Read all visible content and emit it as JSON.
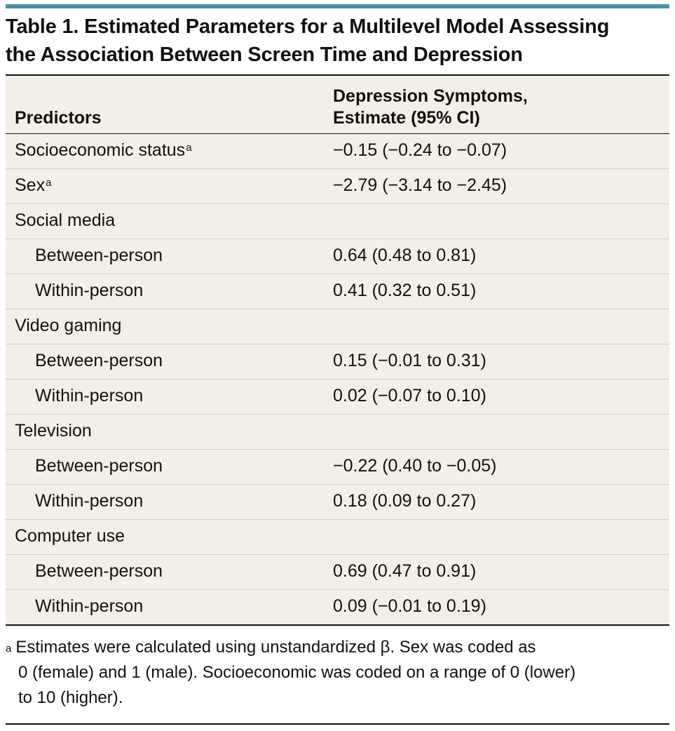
{
  "title_line1": "Table 1. Estimated Parameters for a Multilevel Model Assessing",
  "title_line2": "the Association Between Screen Time and Depression",
  "header": {
    "col1": "Predictors",
    "col2_line1": "Depression Symptoms,",
    "col2_line2": "Estimate (95% CI)"
  },
  "rows": [
    {
      "label": "Socioeconomic status",
      "sup": "a",
      "value": "−0.15 (−0.24 to −0.07)"
    },
    {
      "label": "Sex",
      "sup": "a",
      "value": "−2.79 (−3.14 to −2.45)"
    },
    {
      "label": "Social media",
      "value": ""
    },
    {
      "label": "Between-person",
      "value": "0.64 (0.48 to 0.81)"
    },
    {
      "label": "Within-person",
      "value": "0.41 (0.32 to 0.51)"
    },
    {
      "label": "Video gaming",
      "value": ""
    },
    {
      "label": "Between-person",
      "value": "0.15 (−0.01 to 0.31)"
    },
    {
      "label": "Within-person",
      "value": "0.02 (−0.07 to 0.10)"
    },
    {
      "label": "Television",
      "value": ""
    },
    {
      "label": "Between-person",
      "value": "−0.22 (0.40 to −0.05)"
    },
    {
      "label": "Within-person",
      "value": "0.18 (0.09 to 0.27)"
    },
    {
      "label": "Computer use",
      "value": ""
    },
    {
      "label": "Between-person",
      "value": "0.69 (0.47 to 0.91)"
    },
    {
      "label": "Within-person",
      "value": "0.09 (−0.01 to 0.19)"
    }
  ],
  "footnote": {
    "marker": "a",
    "line1": "Estimates were calculated using unstandardized β. Sex was coded as",
    "line2": "0 (female) and 1 (male). Socioeconomic was coded on a range of 0 (lower)",
    "line3": "to 10 (higher)."
  },
  "colors": {
    "accent_rule": "#4a90a8",
    "table_bg": "#f2f0e6"
  }
}
